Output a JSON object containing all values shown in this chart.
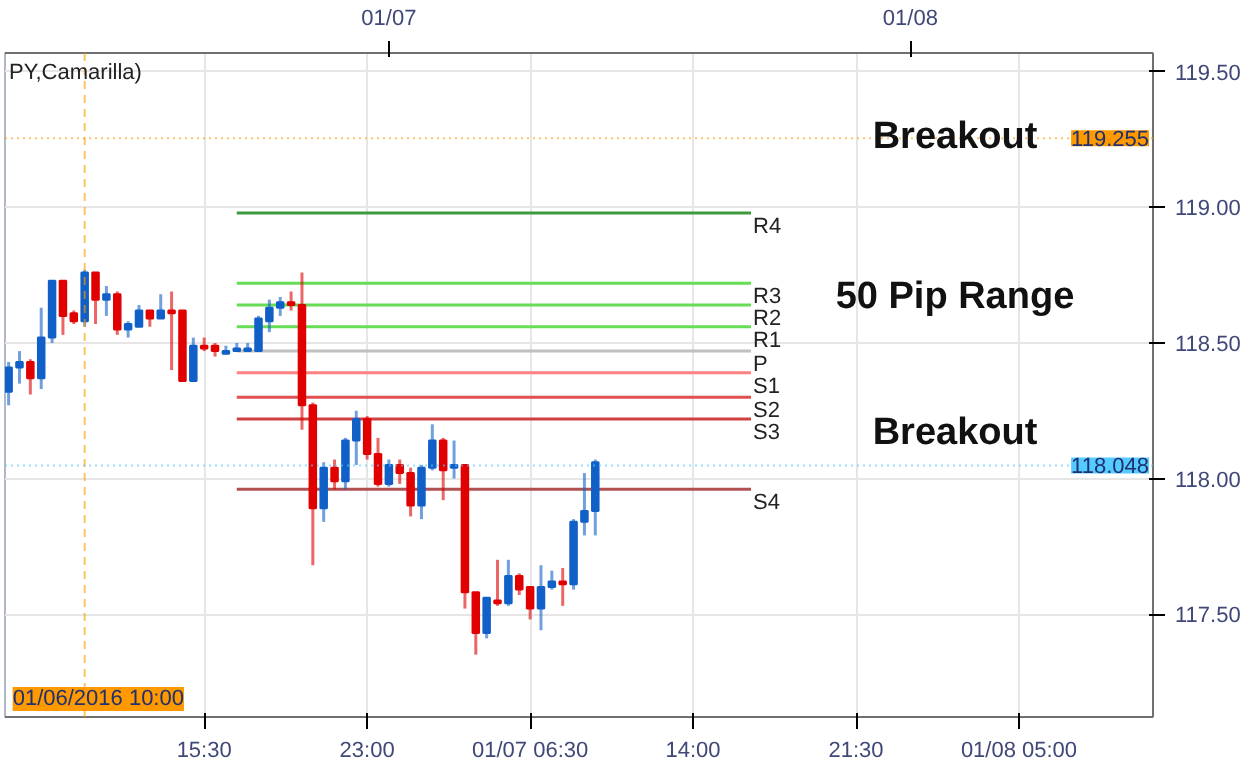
{
  "chart_data": {
    "type": "candlestick",
    "title": "PY,Camarilla)",
    "x": [
      "2016-01-06T06:30",
      "2016-01-06T07:00",
      "2016-01-06T07:30",
      "2016-01-06T08:00",
      "2016-01-06T08:30",
      "2016-01-06T09:00",
      "2016-01-06T09:30",
      "2016-01-06T10:00",
      "2016-01-06T10:30",
      "2016-01-06T11:00",
      "2016-01-06T11:30",
      "2016-01-06T12:00",
      "2016-01-06T12:30",
      "2016-01-06T13:00",
      "2016-01-06T13:30",
      "2016-01-06T14:00",
      "2016-01-06T14:30",
      "2016-01-06T15:00",
      "2016-01-06T15:30",
      "2016-01-06T16:00",
      "2016-01-06T16:30",
      "2016-01-06T17:00",
      "2016-01-06T17:30",
      "2016-01-06T18:00",
      "2016-01-06T18:30",
      "2016-01-06T19:00",
      "2016-01-06T19:30",
      "2016-01-06T20:00",
      "2016-01-06T20:30",
      "2016-01-06T21:00",
      "2016-01-06T21:30",
      "2016-01-06T22:00",
      "2016-01-06T22:30",
      "2016-01-06T23:00",
      "2016-01-06T23:30",
      "2016-01-07T00:00",
      "2016-01-07T00:30",
      "2016-01-07T01:00",
      "2016-01-07T01:30",
      "2016-01-07T02:00",
      "2016-01-07T02:30",
      "2016-01-07T03:00",
      "2016-01-07T03:30",
      "2016-01-07T04:00",
      "2016-01-07T04:30",
      "2016-01-07T05:00",
      "2016-01-07T05:30",
      "2016-01-07T06:00",
      "2016-01-07T06:30",
      "2016-01-07T07:00",
      "2016-01-07T07:30",
      "2016-01-07T08:00",
      "2016-01-07T08:30",
      "2016-01-07T09:00",
      "2016-01-07T09:30"
    ],
    "ohlc": [
      [
        118.32,
        118.43,
        118.27,
        118.41
      ],
      [
        118.41,
        118.47,
        118.35,
        118.43
      ],
      [
        118.43,
        118.44,
        118.31,
        118.37
      ],
      [
        118.37,
        118.63,
        118.33,
        118.52
      ],
      [
        118.52,
        118.73,
        118.5,
        118.73
      ],
      [
        118.73,
        118.73,
        118.53,
        118.6
      ],
      [
        118.61,
        118.62,
        118.57,
        118.58
      ],
      [
        118.58,
        118.77,
        118.56,
        118.76
      ],
      [
        118.76,
        118.76,
        118.57,
        118.66
      ],
      [
        118.66,
        118.71,
        118.6,
        118.68
      ],
      [
        118.68,
        118.69,
        118.53,
        118.55
      ],
      [
        118.55,
        118.58,
        118.52,
        118.57
      ],
      [
        118.56,
        118.64,
        118.56,
        118.62
      ],
      [
        118.62,
        118.62,
        118.56,
        118.59
      ],
      [
        118.59,
        118.68,
        118.59,
        118.62
      ],
      [
        118.62,
        118.69,
        118.4,
        118.61
      ],
      [
        118.62,
        118.62,
        118.36,
        118.36
      ],
      [
        118.36,
        118.52,
        118.36,
        118.49
      ],
      [
        118.49,
        118.52,
        118.47,
        118.48
      ],
      [
        118.49,
        118.5,
        118.45,
        118.47
      ],
      [
        118.46,
        118.49,
        118.46,
        118.47
      ],
      [
        118.47,
        118.5,
        118.47,
        118.48
      ],
      [
        118.47,
        118.5,
        118.47,
        118.48
      ],
      [
        118.47,
        118.6,
        118.47,
        118.59
      ],
      [
        118.58,
        118.66,
        118.54,
        118.63
      ],
      [
        118.63,
        118.67,
        118.6,
        118.65
      ],
      [
        118.65,
        118.69,
        118.62,
        118.64
      ],
      [
        118.64,
        118.76,
        118.18,
        118.27
      ],
      [
        118.27,
        118.28,
        117.68,
        117.89
      ],
      [
        117.89,
        118.06,
        117.84,
        118.04
      ],
      [
        118.04,
        118.07,
        117.96,
        117.99
      ],
      [
        117.99,
        118.15,
        117.96,
        118.14
      ],
      [
        118.14,
        118.25,
        118.05,
        118.22
      ],
      [
        118.22,
        118.23,
        118.07,
        118.09
      ],
      [
        118.09,
        118.15,
        117.97,
        117.98
      ],
      [
        117.98,
        118.07,
        117.97,
        118.05
      ],
      [
        118.05,
        118.07,
        117.98,
        118.02
      ],
      [
        118.02,
        118.04,
        117.86,
        117.9
      ],
      [
        117.9,
        118.05,
        117.85,
        118.04
      ],
      [
        118.04,
        118.2,
        118.03,
        118.14
      ],
      [
        118.14,
        118.15,
        117.92,
        118.03
      ],
      [
        118.04,
        118.14,
        118.0,
        118.05
      ],
      [
        118.05,
        118.05,
        117.52,
        117.58
      ],
      [
        117.58,
        117.58,
        117.35,
        117.43
      ],
      [
        117.43,
        117.56,
        117.41,
        117.56
      ],
      [
        117.55,
        117.7,
        117.53,
        117.54
      ],
      [
        117.54,
        117.7,
        117.53,
        117.64
      ],
      [
        117.64,
        117.65,
        117.57,
        117.59
      ],
      [
        117.6,
        117.6,
        117.48,
        117.52
      ],
      [
        117.52,
        117.68,
        117.44,
        117.6
      ],
      [
        117.6,
        117.66,
        117.59,
        117.62
      ],
      [
        117.62,
        117.67,
        117.53,
        117.61
      ],
      [
        117.61,
        117.85,
        117.59,
        117.84
      ],
      [
        117.84,
        118.02,
        117.79,
        117.88
      ],
      [
        117.88,
        118.07,
        117.79,
        118.06
      ]
    ],
    "colors": [
      "#1060c8",
      "#1060c8",
      "#e00000",
      "#1060c8",
      "#1060c8",
      "#e00000",
      "#e00000",
      "#1060c8",
      "#e00000",
      "#1060c8",
      "#e00000",
      "#1060c8",
      "#1060c8",
      "#e00000",
      "#1060c8",
      "#e00000",
      "#e00000",
      "#1060c8",
      "#e00000",
      "#e00000",
      "#1060c8",
      "#1060c8",
      "#1060c8",
      "#1060c8",
      "#1060c8",
      "#1060c8",
      "#e00000",
      "#e00000",
      "#e00000",
      "#1060c8",
      "#e00000",
      "#1060c8",
      "#1060c8",
      "#e00000",
      "#e00000",
      "#1060c8",
      "#e00000",
      "#e00000",
      "#1060c8",
      "#1060c8",
      "#e00000",
      "#1060c8",
      "#e00000",
      "#e00000",
      "#1060c8",
      "#e00000",
      "#1060c8",
      "#e00000",
      "#e00000",
      "#1060c8",
      "#1060c8",
      "#e00000",
      "#1060c8",
      "#1060c8",
      "#1060c8"
    ],
    "series": [
      {
        "type": "line",
        "name": "R4",
        "color": "#3c9a3c",
        "x": [
          "2016-01-06T17:00",
          "2016-01-07T16:40"
        ],
        "values": [
          118.98,
          118.98
        ]
      },
      {
        "type": "line",
        "name": "R3",
        "color": "#66dd55",
        "x": [
          "2016-01-06T17:00",
          "2016-01-07T16:40"
        ],
        "values": [
          118.72,
          118.72
        ]
      },
      {
        "type": "line",
        "name": "R2",
        "color": "#66dd55",
        "x": [
          "2016-01-06T17:00",
          "2016-01-07T16:40"
        ],
        "values": [
          118.64,
          118.64
        ]
      },
      {
        "type": "line",
        "name": "R1",
        "color": "#66dd55",
        "x": [
          "2016-01-06T17:00",
          "2016-01-07T16:40"
        ],
        "values": [
          118.56,
          118.56
        ]
      },
      {
        "type": "line",
        "name": "P",
        "color": "#c0c0c0",
        "x": [
          "2016-01-06T17:00",
          "2016-01-07T16:40"
        ],
        "values": [
          118.47,
          118.47
        ]
      },
      {
        "type": "line",
        "name": "S1",
        "color": "#ff8080",
        "x": [
          "2016-01-06T17:00",
          "2016-01-07T16:40"
        ],
        "values": [
          118.39,
          118.39
        ]
      },
      {
        "type": "line",
        "name": "S2",
        "color": "#e05050",
        "x": [
          "2016-01-06T17:00",
          "2016-01-07T16:40"
        ],
        "values": [
          118.3,
          118.3
        ]
      },
      {
        "type": "line",
        "name": "S3",
        "color": "#d04040",
        "x": [
          "2016-01-06T17:00",
          "2016-01-07T16:40"
        ],
        "values": [
          118.22,
          118.22
        ]
      },
      {
        "type": "line",
        "name": "S4",
        "color": "#b05050",
        "x": [
          "2016-01-06T17:00",
          "2016-01-07T16:40"
        ],
        "values": [
          117.96,
          117.96
        ]
      }
    ],
    "ref_lines": [
      {
        "axis": "x",
        "value": "2016-01-06T10:00",
        "label": "01/06/2016 10:00",
        "color": "#ff9900",
        "line_style": "dashed"
      },
      {
        "axis": "y",
        "value": 119.255,
        "label": "119.255",
        "color": "#ff9900",
        "line_style": "dotted"
      },
      {
        "axis": "y",
        "value": 118.048,
        "label": "118.048",
        "color": "#55ccff",
        "line_style": "dotted"
      }
    ],
    "annotations": [
      "Breakout",
      "50 Pip Range",
      "Breakout"
    ],
    "xlim": [
      "2016-01-06T06:20",
      "2016-01-08T11:10"
    ],
    "ylim": [
      117.12,
      119.57
    ],
    "xticks": [
      {
        "value": "2016-01-06T15:30",
        "label": "15:30"
      },
      {
        "value": "2016-01-06T23:00",
        "label": "23:00"
      },
      {
        "value": "2016-01-07T06:30",
        "label": "01/07 06:30"
      },
      {
        "value": "2016-01-07T14:00",
        "label": "14:00"
      },
      {
        "value": "2016-01-07T21:30",
        "label": "21:30"
      },
      {
        "value": "2016-01-08T05:00",
        "label": "01/08 05:00"
      }
    ],
    "x2lim": [
      "2016-01-06T06:20",
      "2016-01-08T11:10"
    ],
    "x2ticks": [
      {
        "value": "2016-01-07",
        "label": "01/07"
      },
      {
        "value": "2016-01-08",
        "label": "01/08"
      }
    ],
    "yticks": [
      {
        "value": 117.5,
        "label": "117.50"
      },
      {
        "value": 118,
        "label": "118.00"
      },
      {
        "value": 118.5,
        "label": "118.50"
      },
      {
        "value": 119,
        "label": "119.00"
      },
      {
        "value": 119.5,
        "label": "119.50"
      }
    ],
    "grid": true
  }
}
